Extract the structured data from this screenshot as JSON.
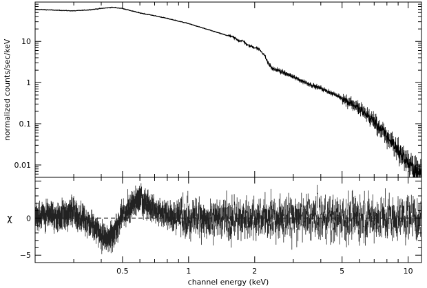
{
  "chart_data": [
    {
      "type": "line",
      "panel": "spectrum",
      "ylabel": "normalized counts/sec/keV",
      "xscale": "log",
      "yscale": "log",
      "xlim": [
        0.2,
        11.5
      ],
      "ylim": [
        0.005,
        90
      ],
      "yticks": [
        0.01,
        0.1,
        1,
        10
      ],
      "ytick_labels": [
        "0.01",
        "0.1",
        "1",
        "10"
      ],
      "series": [
        {
          "x": [
            0.2,
            0.25,
            0.3,
            0.35,
            0.4,
            0.45,
            0.5,
            0.55,
            0.6,
            0.7,
            0.8,
            0.9,
            1.0,
            1.1,
            1.2,
            1.4,
            1.6,
            1.7,
            1.8,
            1.85,
            2.0,
            2.1,
            2.2,
            2.3,
            2.4,
            2.6,
            2.8,
            3.0,
            3.5,
            4.0,
            4.5,
            5.0,
            5.5,
            6.0,
            6.5,
            7.0,
            7.5,
            8.0,
            8.5,
            9.0,
            9.5,
            10.0,
            10.5,
            11.0,
            11.5
          ],
          "y": [
            60,
            57,
            55,
            58,
            63,
            67,
            63,
            55,
            49,
            42,
            36,
            31,
            27,
            23,
            20,
            15.5,
            12.5,
            10.5,
            9.8,
            8.0,
            7.2,
            6.3,
            5.0,
            3.0,
            2.2,
            1.9,
            1.6,
            1.35,
            0.95,
            0.72,
            0.55,
            0.42,
            0.32,
            0.22,
            0.16,
            0.11,
            0.075,
            0.05,
            0.034,
            0.023,
            0.016,
            0.011,
            0.008,
            0.0065,
            0.0055
          ]
        }
      ]
    },
    {
      "type": "scatter",
      "panel": "residuals",
      "xlabel": "channel energy (keV)",
      "ylabel": "χ",
      "xscale": "log",
      "xlim": [
        0.2,
        11.5
      ],
      "ylim": [
        -6,
        5.5
      ],
      "yticks": [
        -5,
        0
      ],
      "ytick_labels": [
        "−5",
        "0"
      ],
      "xticks": [
        0.5,
        1,
        2,
        5,
        10
      ],
      "xtick_labels": [
        "0.5",
        "1",
        "2",
        "5",
        "10"
      ],
      "reference_line": 0,
      "trend": {
        "x": [
          0.2,
          0.25,
          0.3,
          0.35,
          0.4,
          0.42,
          0.45,
          0.48,
          0.5,
          0.55,
          0.6,
          0.65,
          0.7,
          0.8,
          1.0,
          1.5,
          2.0,
          3.0,
          5.0,
          8.0,
          10.0,
          11.5
        ],
        "y": [
          0.5,
          0.2,
          1.0,
          -0.5,
          -2.0,
          -3.0,
          -2.5,
          -1.0,
          0.5,
          1.5,
          2.8,
          2.0,
          1.0,
          0.3,
          0,
          0,
          0,
          0,
          0,
          0,
          0,
          0
        ]
      }
    }
  ]
}
